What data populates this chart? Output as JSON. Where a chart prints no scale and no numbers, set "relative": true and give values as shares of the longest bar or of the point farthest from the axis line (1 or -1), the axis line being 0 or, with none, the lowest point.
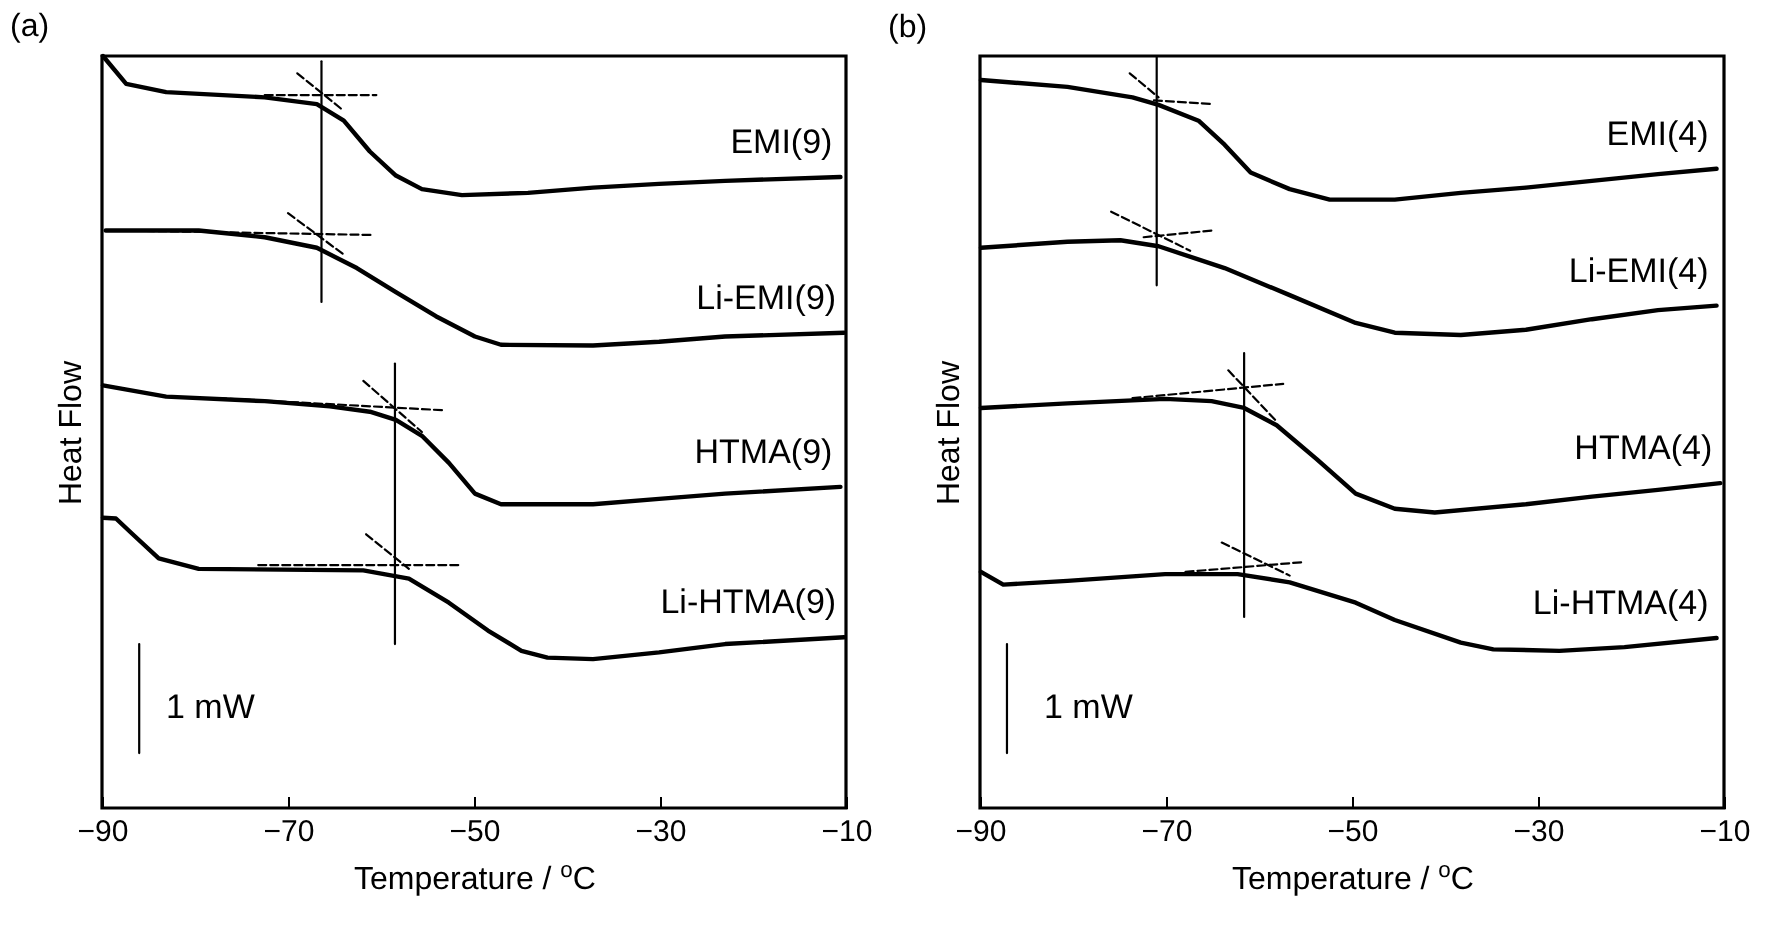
{
  "chart_data": [
    {
      "type": "line",
      "title": "(a)",
      "xlabel": "Temperature / $^{o}$C",
      "ylabel": "Heat Flow",
      "relative": true,
      "xlim": [
        -90,
        -10
      ],
      "xticks": [
        -90,
        -70,
        -50,
        -30,
        -10
      ],
      "grid": false,
      "legend": false,
      "marker": "none",
      "line_style": "solid",
      "series": [
        {
          "name": "EMI(9)",
          "color": "#000000",
          "x": [
            -89.9,
            -87.4,
            -83.1,
            -72.5,
            -66.9,
            -64.0,
            -61.2,
            -58.4,
            -55.6,
            -51.3,
            -44.2,
            -37.2,
            -30.1,
            -23.0,
            -10.6
          ],
          "values": [
            1.0,
            0.963,
            0.952,
            0.945,
            0.936,
            0.914,
            0.873,
            0.841,
            0.823,
            0.815,
            0.818,
            0.825,
            0.83,
            0.834,
            0.839
          ]
        },
        {
          "name": "Li-EMI(9)",
          "color": "#000000",
          "x": [
            -89.6,
            -79.6,
            -72.5,
            -66.9,
            -62.6,
            -58.4,
            -54.1,
            -49.9,
            -47.1,
            -37.2,
            -30.1,
            -23.0,
            -10.2
          ],
          "values": [
            0.768,
            0.768,
            0.759,
            0.745,
            0.718,
            0.686,
            0.654,
            0.627,
            0.616,
            0.615,
            0.62,
            0.627,
            0.632
          ]
        },
        {
          "name": "HTMA(9)",
          "color": "#000000",
          "x": [
            -89.9,
            -83.1,
            -72.5,
            -65.5,
            -61.2,
            -58.4,
            -55.6,
            -52.7,
            -49.9,
            -47.1,
            -37.2,
            -30.1,
            -23.0,
            -10.6
          ],
          "values": [
            0.562,
            0.547,
            0.541,
            0.534,
            0.527,
            0.516,
            0.495,
            0.459,
            0.418,
            0.404,
            0.404,
            0.411,
            0.418,
            0.427
          ]
        },
        {
          "name": "Li-HTMA(9)",
          "color": "#000000",
          "x": [
            -89.9,
            -88.5,
            -86.7,
            -83.9,
            -79.6,
            -61.9,
            -57.0,
            -52.7,
            -48.5,
            -44.9,
            -42.1,
            -37.2,
            -30.1,
            -23.0,
            -10.2
          ],
          "values": [
            0.386,
            0.385,
            0.364,
            0.332,
            0.318,
            0.316,
            0.305,
            0.273,
            0.236,
            0.209,
            0.2,
            0.198,
            0.207,
            0.218,
            0.227
          ]
        },
        {
          "color": "#000000",
          "x": [
            -66.4,
            -66.4
          ],
          "values": [
            0.993,
            0.673
          ]
        },
        {
          "color": "#000000",
          "x": [
            -58.5,
            -58.5
          ],
          "values": [
            0.591,
            0.218
          ]
        },
        {
          "color": "#000000",
          "line_style": "dashed",
          "x": [
            -72.5,
            -60.5
          ],
          "values": [
            0.948,
            0.948
          ]
        },
        {
          "color": "#000000",
          "line_style": "dashed",
          "x": [
            -69.0,
            -64.0
          ],
          "values": [
            0.977,
            0.927
          ]
        },
        {
          "color": "#000000",
          "line_style": "dashed",
          "x": [
            -87.8,
            -60.9
          ],
          "values": [
            0.768,
            0.762
          ]
        },
        {
          "color": "#000000",
          "line_style": "dashed",
          "x": [
            -70.0,
            -64.0
          ],
          "values": [
            0.791,
            0.736
          ]
        },
        {
          "color": "#000000",
          "line_style": "dashed",
          "x": [
            -77.5,
            -53.4
          ],
          "values": [
            0.545,
            0.529
          ]
        },
        {
          "color": "#000000",
          "line_style": "dashed",
          "x": [
            -61.9,
            -55.6
          ],
          "values": [
            0.568,
            0.5
          ]
        },
        {
          "color": "#000000",
          "line_style": "dashed",
          "x": [
            -73.2,
            -51.3
          ],
          "values": [
            0.323,
            0.323
          ]
        },
        {
          "color": "#000000",
          "line_style": "dashed",
          "x": [
            -61.6,
            -57.0
          ],
          "values": [
            0.364,
            0.318
          ]
        },
        {
          "color": "#000000",
          "x": [
            -86.0,
            -86.0
          ],
          "values": [
            0.218,
            0.073
          ]
        }
      ],
      "annotations": [
        "1 mW"
      ]
    },
    {
      "type": "line",
      "title": "(b)",
      "xlabel": "Temperature / $^{o}$C",
      "ylabel": "Heat Flow",
      "relative": true,
      "xlim": [
        -90,
        -10
      ],
      "xticks": [
        -90,
        -70,
        -50,
        -30,
        -10
      ],
      "grid": false,
      "legend": false,
      "marker": "none",
      "line_style": "solid",
      "series": [
        {
          "name": "EMI(4)",
          "color": "#000000",
          "x": [
            -89.9,
            -80.6,
            -73.6,
            -70.8,
            -66.5,
            -63.7,
            -60.9,
            -56.7,
            -52.4,
            -45.4,
            -38.3,
            -31.3,
            -24.2,
            -17.1,
            -10.8
          ],
          "values": [
            0.968,
            0.959,
            0.945,
            0.935,
            0.914,
            0.882,
            0.845,
            0.823,
            0.809,
            0.809,
            0.818,
            0.825,
            0.834,
            0.843,
            0.85
          ]
        },
        {
          "name": "Li-EMI(4)",
          "color": "#000000",
          "x": [
            -89.9,
            -80.6,
            -74.9,
            -70.8,
            -63.7,
            -56.7,
            -49.6,
            -45.4,
            -38.3,
            -31.3,
            -24.2,
            -17.1,
            -10.8
          ],
          "values": [
            0.745,
            0.753,
            0.755,
            0.747,
            0.718,
            0.682,
            0.645,
            0.632,
            0.629,
            0.636,
            0.65,
            0.662,
            0.668
          ]
        },
        {
          "name": "HTMA(4)",
          "color": "#000000",
          "x": [
            -89.9,
            -80.6,
            -70.1,
            -65.1,
            -61.6,
            -58.1,
            -53.8,
            -49.6,
            -45.4,
            -41.1,
            -31.3,
            -24.2,
            -17.1,
            -10.4
          ],
          "values": [
            0.532,
            0.538,
            0.544,
            0.541,
            0.532,
            0.509,
            0.464,
            0.418,
            0.398,
            0.393,
            0.404,
            0.414,
            0.423,
            0.432
          ]
        },
        {
          "name": "Li-HTMA(4)",
          "color": "#000000",
          "x": [
            -89.9,
            -87.5,
            -80.6,
            -70.1,
            -62.3,
            -56.7,
            -49.6,
            -45.4,
            -38.3,
            -34.8,
            -27.7,
            -20.7,
            -10.8
          ],
          "values": [
            0.314,
            0.297,
            0.302,
            0.311,
            0.311,
            0.3,
            0.273,
            0.25,
            0.22,
            0.211,
            0.209,
            0.214,
            0.226
          ]
        },
        {
          "color": "#000000",
          "x": [
            -71.0,
            -71.0
          ],
          "values": [
            1.0,
            0.695
          ]
        },
        {
          "color": "#000000",
          "x": [
            -61.6,
            -61.6
          ],
          "values": [
            0.605,
            0.254
          ]
        },
        {
          "color": "#000000",
          "line_style": "dashed",
          "x": [
            -71.3,
            -64.9
          ],
          "values": [
            0.941,
            0.936
          ]
        },
        {
          "color": "#000000",
          "line_style": "dashed",
          "x": [
            -73.9,
            -70.8
          ],
          "values": [
            0.977,
            0.945
          ]
        },
        {
          "color": "#000000",
          "line_style": "dashed",
          "x": [
            -72.4,
            -65.0
          ],
          "values": [
            0.759,
            0.768
          ]
        },
        {
          "color": "#000000",
          "line_style": "dashed",
          "x": [
            -75.9,
            -67.4
          ],
          "values": [
            0.793,
            0.741
          ]
        },
        {
          "color": "#000000",
          "line_style": "dashed",
          "x": [
            -73.6,
            -57.4
          ],
          "values": [
            0.545,
            0.564
          ]
        },
        {
          "color": "#000000",
          "line_style": "dashed",
          "x": [
            -63.3,
            -58.1
          ],
          "values": [
            0.582,
            0.514
          ]
        },
        {
          "color": "#000000",
          "line_style": "dashed",
          "x": [
            -67.9,
            -55.2
          ],
          "values": [
            0.314,
            0.327
          ]
        },
        {
          "color": "#000000",
          "line_style": "dashed",
          "x": [
            -64.0,
            -56.7
          ],
          "values": [
            0.353,
            0.309
          ]
        },
        {
          "color": "#000000",
          "x": [
            -87.1,
            -87.1
          ],
          "values": [
            0.218,
            0.073
          ]
        }
      ],
      "annotations": [
        "1 mW"
      ]
    }
  ]
}
